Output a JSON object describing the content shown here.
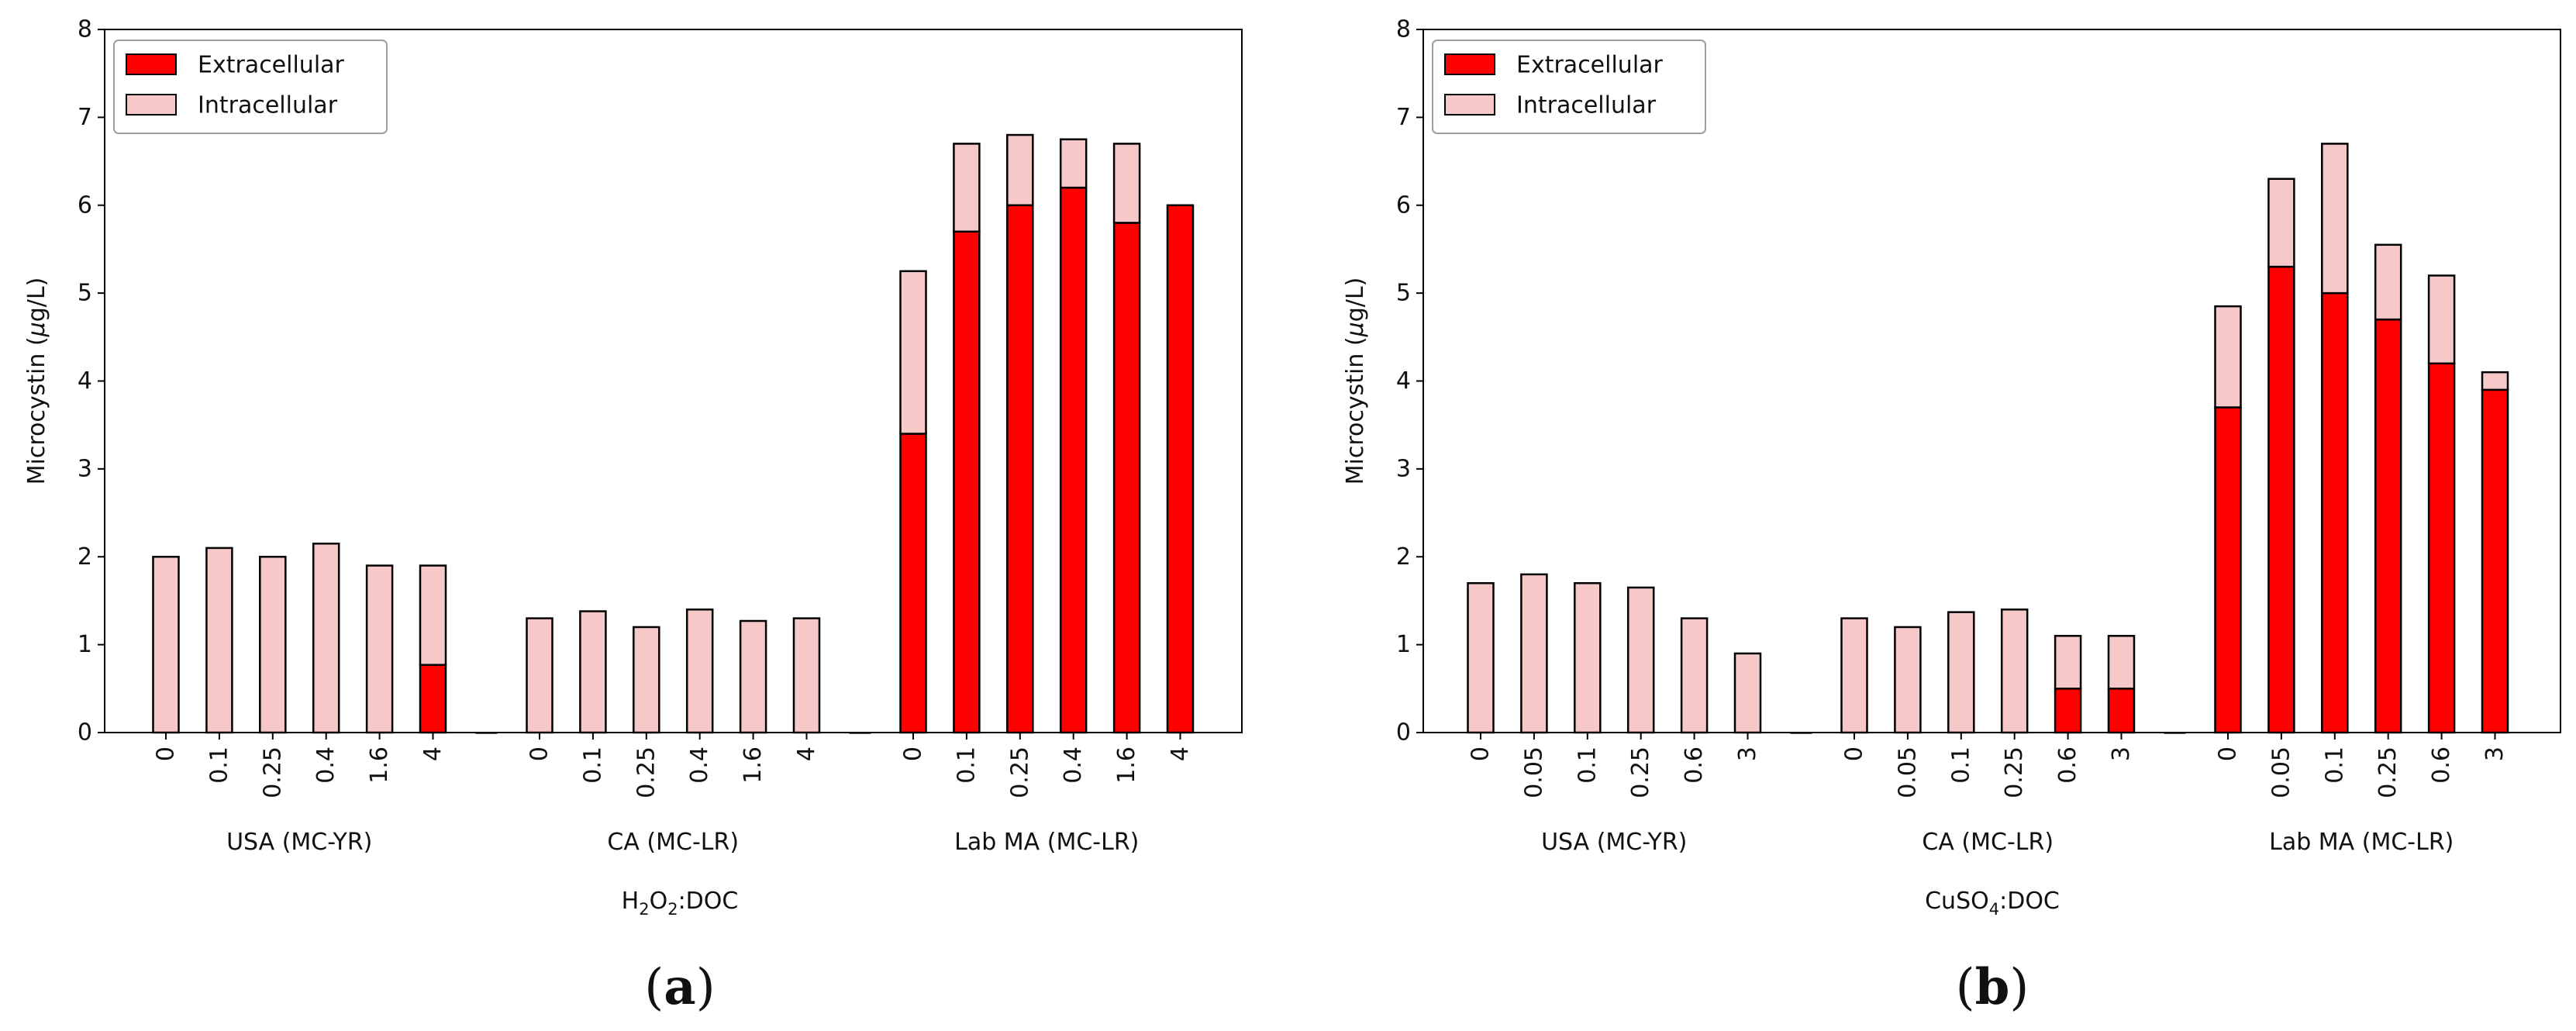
{
  "chart_data": [
    {
      "type": "bar",
      "stacked": true,
      "panel_label": "(a)",
      "xlabel_prefix": "H",
      "xlabel_sub": "2",
      "xlabel_suffix": "O",
      "xlabel_sub2": "2",
      "xlabel_rest": ":DOC",
      "ylabel_main": "Microcystin (",
      "ylabel_mu": "μ",
      "ylabel_tail": "g/L)",
      "ylim": [
        0,
        8
      ],
      "yticks": [
        "0",
        "1",
        "2",
        "3",
        "4",
        "5",
        "6",
        "7",
        "8"
      ],
      "legend": {
        "position": "top-left",
        "entries": [
          "Extracellular",
          "Intracellular"
        ]
      },
      "colors": {
        "extracellular": "#ff0000",
        "intracellular": "#f6c8c8",
        "edge": "#000000"
      },
      "groups": [
        {
          "name": "USA (MC-YR)",
          "categories": [
            "0",
            "0.1",
            "0.25",
            "0.4",
            "1.6",
            "4"
          ],
          "extracellular": [
            0,
            0,
            0,
            0,
            0,
            0.77
          ],
          "total": [
            2.0,
            2.1,
            2.0,
            2.15,
            1.9,
            1.9
          ]
        },
        {
          "name": "CA (MC-LR)",
          "categories": [
            "0",
            "0.1",
            "0.25",
            "0.4",
            "1.6",
            "4"
          ],
          "extracellular": [
            0,
            0,
            0,
            0,
            0,
            0
          ],
          "total": [
            1.3,
            1.38,
            1.2,
            1.4,
            1.27,
            1.3
          ]
        },
        {
          "name": "Lab MA (MC-LR)",
          "categories": [
            "0",
            "0.1",
            "0.25",
            "0.4",
            "1.6",
            "4"
          ],
          "extracellular": [
            3.4,
            5.7,
            6.0,
            6.2,
            5.8,
            6.0
          ],
          "total": [
            5.25,
            6.7,
            6.8,
            6.75,
            6.7,
            6.0
          ]
        }
      ]
    },
    {
      "type": "bar",
      "stacked": true,
      "panel_label": "(b)",
      "xlabel_prefix": "CuSO",
      "xlabel_sub": "4",
      "xlabel_suffix": "",
      "xlabel_sub2": "",
      "xlabel_rest": ":DOC",
      "ylabel_main": "Microcystin (",
      "ylabel_mu": "μ",
      "ylabel_tail": "g/L)",
      "ylim": [
        0,
        8
      ],
      "yticks": [
        "0",
        "1",
        "2",
        "3",
        "4",
        "5",
        "6",
        "7",
        "8"
      ],
      "legend": {
        "position": "top-left",
        "entries": [
          "Extracellular",
          "Intracellular"
        ]
      },
      "colors": {
        "extracellular": "#ff0000",
        "intracellular": "#f6c8c8",
        "edge": "#000000"
      },
      "groups": [
        {
          "name": "USA (MC-YR)",
          "categories": [
            "0",
            "0.05",
            "0.1",
            "0.25",
            "0.6",
            "3"
          ],
          "extracellular": [
            0,
            0,
            0,
            0,
            0,
            0
          ],
          "total": [
            1.7,
            1.8,
            1.7,
            1.65,
            1.3,
            0.9
          ]
        },
        {
          "name": "CA (MC-LR)",
          "categories": [
            "0",
            "0.05",
            "0.1",
            "0.25",
            "0.6",
            "3"
          ],
          "extracellular": [
            0,
            0,
            0,
            0,
            0.5,
            0.5
          ],
          "total": [
            1.3,
            1.2,
            1.37,
            1.4,
            1.1,
            1.1
          ]
        },
        {
          "name": "Lab MA (MC-LR)",
          "categories": [
            "0",
            "0.05",
            "0.1",
            "0.25",
            "0.6",
            "3"
          ],
          "extracellular": [
            3.7,
            5.3,
            5.0,
            4.7,
            4.2,
            3.9
          ],
          "total": [
            4.85,
            6.3,
            6.7,
            5.55,
            5.2,
            4.1
          ]
        }
      ]
    }
  ]
}
